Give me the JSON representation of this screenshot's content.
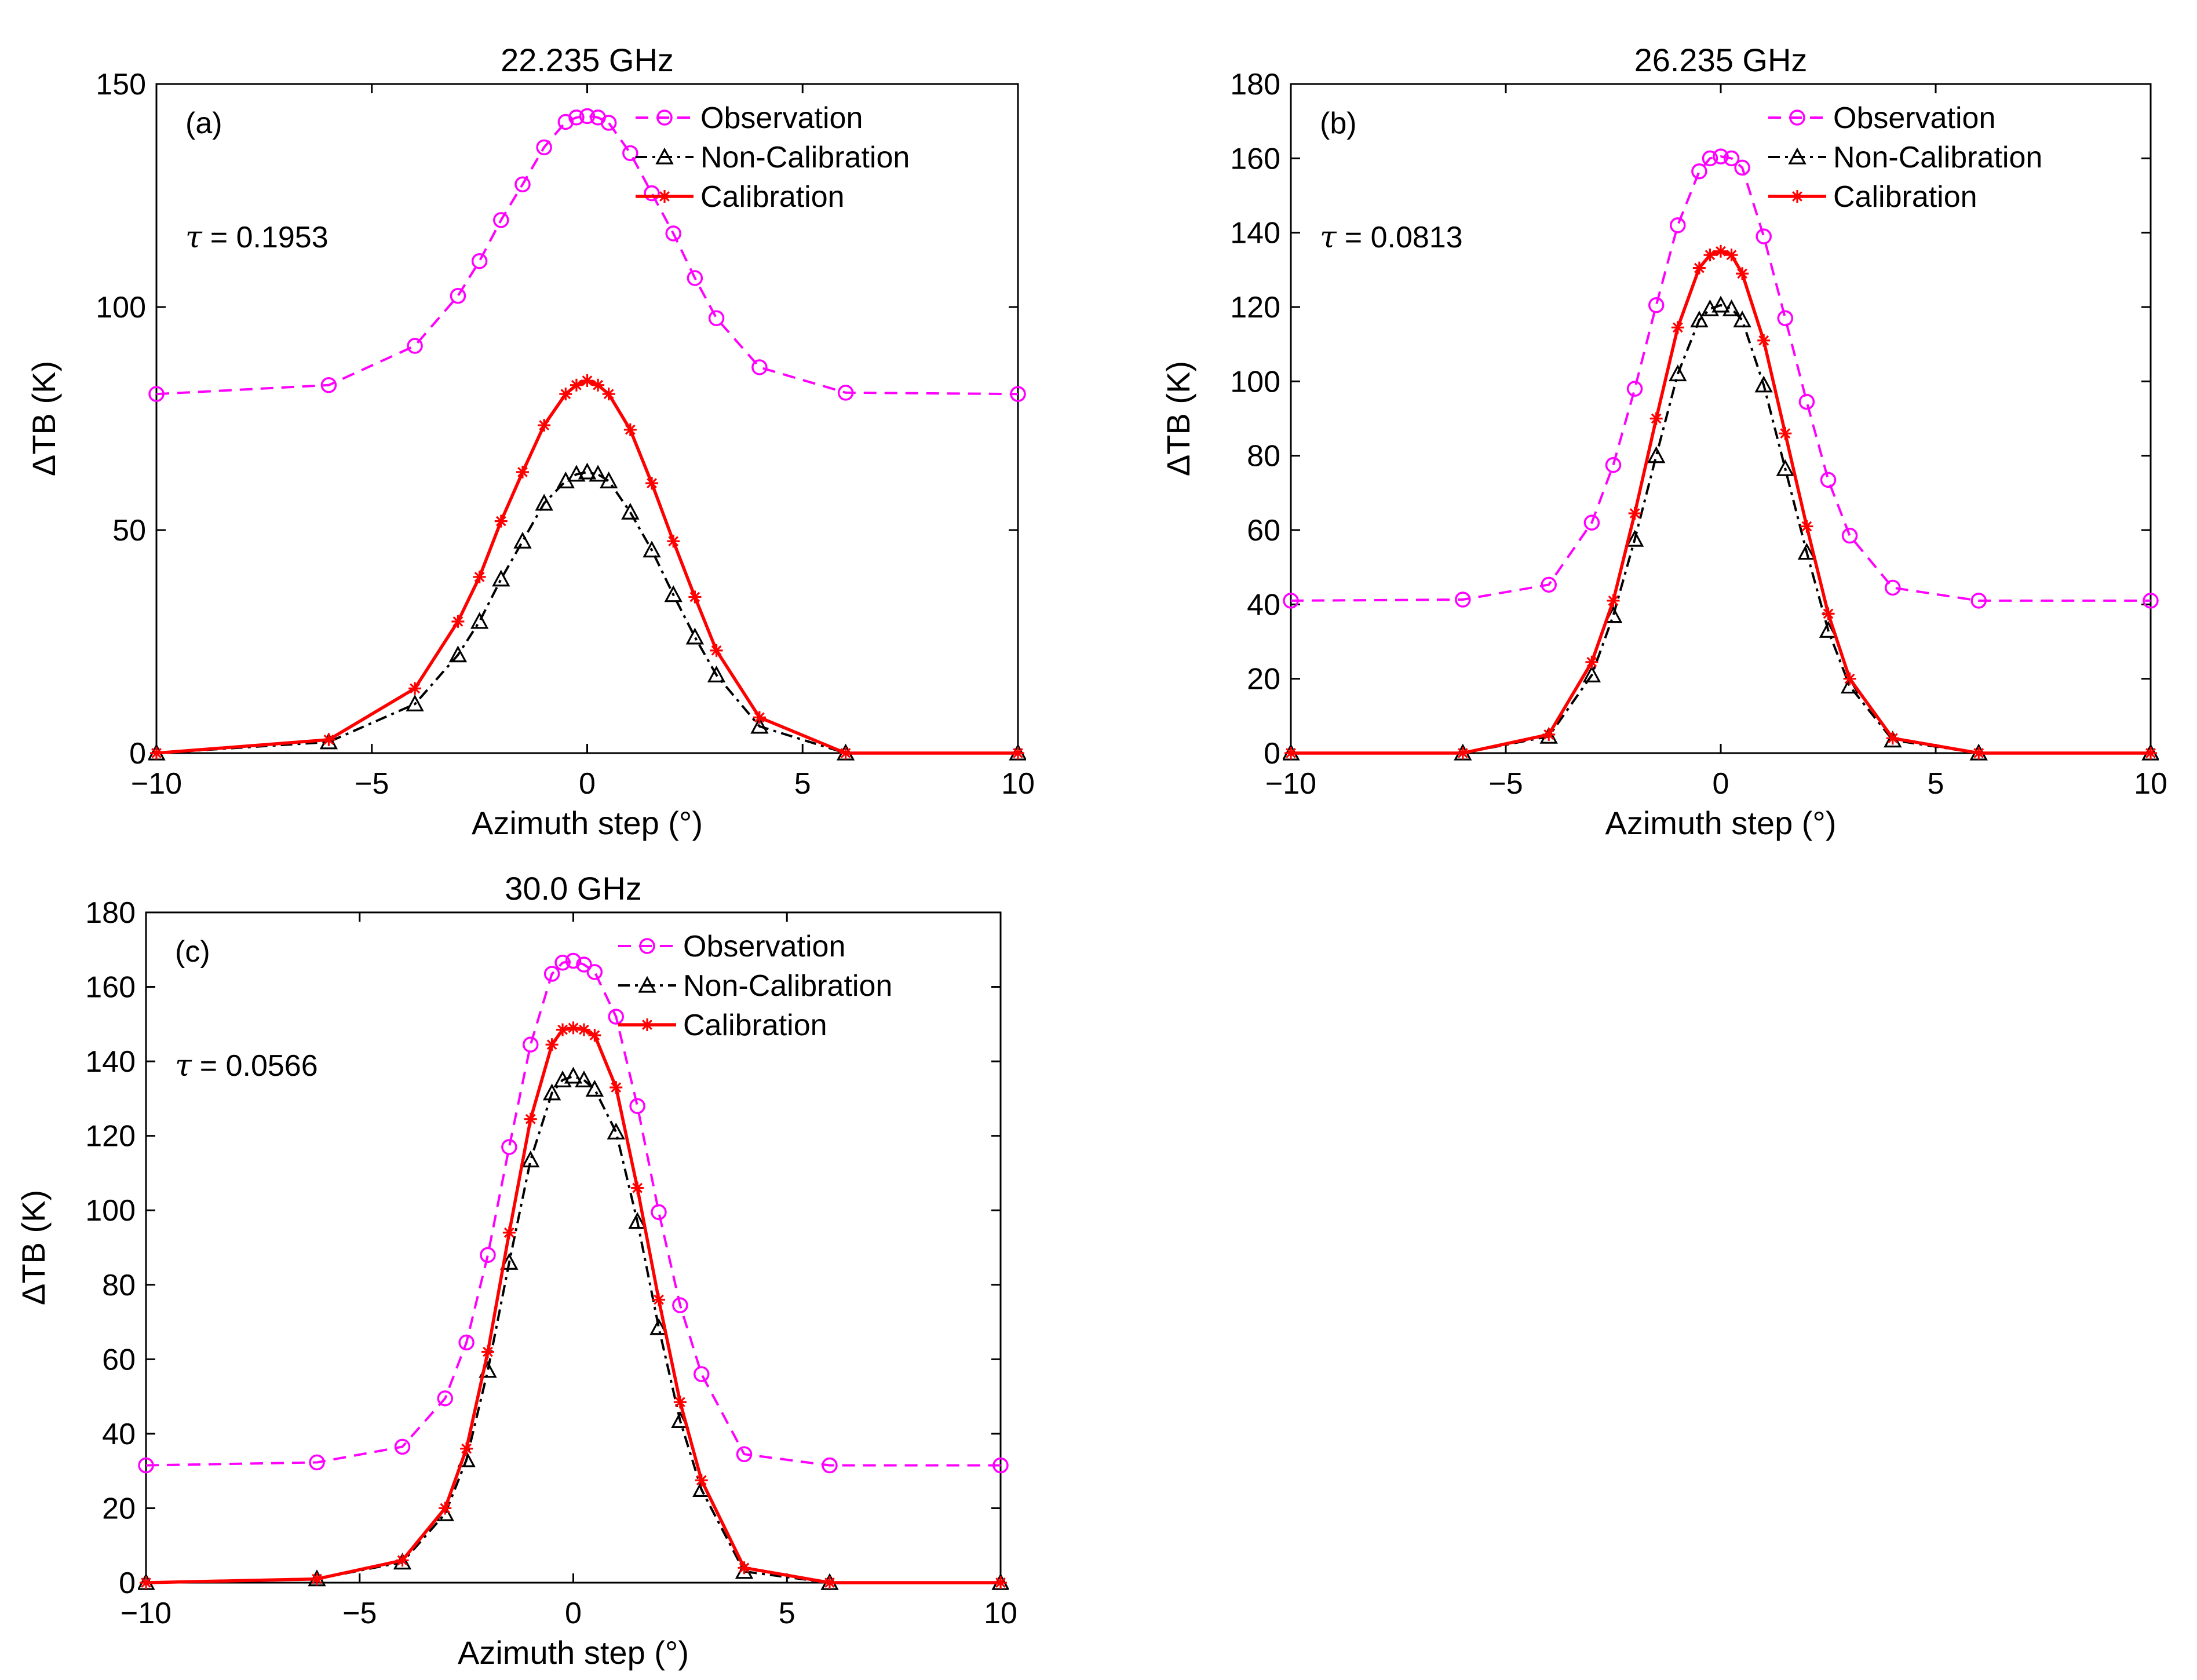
{
  "figure_colors": {
    "observation": "#ff00ff",
    "non_calibration": "#000000",
    "calibration": "#ff0000",
    "axes": "#000000",
    "background": "#ffffff"
  },
  "chart_data": [
    {
      "type": "line",
      "panel_label": "(a)",
      "title": "22.235 GHz",
      "xlabel": "Azimuth step (°)",
      "ylabel": "ΔTB (K)",
      "annotation": "τ = 0.1953",
      "tau_symbol": "τ",
      "tau_text": "= 0.1953",
      "xlim": [
        -10,
        10
      ],
      "ylim": [
        0,
        150
      ],
      "xticks": [
        -10,
        -5,
        0,
        5,
        10
      ],
      "yticks": [
        0,
        50,
        100,
        150
      ],
      "grid": false,
      "legend_position": "top-right",
      "x": [
        -10,
        -6,
        -4,
        -3,
        -2.5,
        -2,
        -1.5,
        -1,
        -0.5,
        -0.25,
        0,
        0.25,
        0.5,
        1,
        1.5,
        2,
        2.5,
        3,
        4,
        6,
        10
      ],
      "series": [
        {
          "name": "Observation",
          "style": "dashed",
          "marker": "circle",
          "values": [
            80.5,
            82.5,
            91.3,
            102.5,
            110.3,
            119.5,
            127.5,
            135.8,
            141.5,
            142.5,
            142.8,
            142.5,
            141.3,
            134.5,
            125.5,
            116.5,
            106.5,
            97.5,
            86.5,
            80.8,
            80.5
          ]
        },
        {
          "name": "Non-Calibration",
          "style": "dashdot",
          "marker": "triangle",
          "values": [
            0,
            2.5,
            11,
            22,
            29.5,
            39,
            47.5,
            56,
            61,
            62.5,
            63,
            62.5,
            61,
            54,
            45.5,
            35.5,
            26,
            17.5,
            6,
            0,
            0
          ]
        },
        {
          "name": "Calibration",
          "style": "solid",
          "marker": "star",
          "values": [
            0,
            3,
            14.5,
            29.5,
            39.5,
            52,
            63,
            73.5,
            80.5,
            82.5,
            83.5,
            82.5,
            80.5,
            72.5,
            60.5,
            47.5,
            35,
            23,
            8,
            0,
            0
          ]
        }
      ]
    },
    {
      "type": "line",
      "panel_label": "(b)",
      "title": "26.235 GHz",
      "xlabel": "Azimuth step (°)",
      "ylabel": "ΔTB (K)",
      "annotation": "τ = 0.0813",
      "tau_symbol": "τ",
      "tau_text": "= 0.0813",
      "xlim": [
        -10,
        10
      ],
      "ylim": [
        0,
        180
      ],
      "xticks": [
        -10,
        -5,
        0,
        5,
        10
      ],
      "yticks": [
        0,
        20,
        40,
        60,
        80,
        100,
        120,
        140,
        160,
        180
      ],
      "grid": false,
      "legend_position": "top-right",
      "x": [
        -10,
        -6,
        -4,
        -3,
        -2.5,
        -2,
        -1.5,
        -1,
        -0.5,
        -0.25,
        0,
        0.25,
        0.5,
        1,
        1.5,
        2,
        2.5,
        3,
        4,
        6,
        10
      ],
      "series": [
        {
          "name": "Observation",
          "style": "dashed",
          "marker": "circle",
          "values": [
            41,
            41.3,
            45.3,
            62,
            77.5,
            98,
            120.5,
            142,
            156.5,
            160,
            160.5,
            160,
            157.5,
            139,
            117,
            94.5,
            73.5,
            58.5,
            44.5,
            41,
            41
          ]
        },
        {
          "name": "Non-Calibration",
          "style": "dashdot",
          "marker": "triangle",
          "values": [
            0,
            0,
            4.5,
            21,
            37,
            57.5,
            80,
            102,
            116.5,
            119.5,
            120.5,
            119.5,
            116.5,
            99,
            76.5,
            54,
            33,
            18,
            3.5,
            0,
            0
          ]
        },
        {
          "name": "Calibration",
          "style": "solid",
          "marker": "star",
          "values": [
            0,
            0,
            5,
            24.5,
            41,
            64.5,
            90,
            114.5,
            130.5,
            134,
            135,
            134,
            129,
            111,
            86,
            61,
            37.5,
            20,
            4,
            0,
            0
          ]
        }
      ]
    },
    {
      "type": "line",
      "panel_label": "(c)",
      "title": "30.0 GHz",
      "xlabel": "Azimuth step (°)",
      "ylabel": "ΔTB (K)",
      "annotation": "τ = 0.0566",
      "tau_symbol": "τ",
      "tau_text": "= 0.0566",
      "xlim": [
        -10,
        10
      ],
      "ylim": [
        0,
        180
      ],
      "xticks": [
        -10,
        -5,
        0,
        5,
        10
      ],
      "yticks": [
        0,
        20,
        40,
        60,
        80,
        100,
        120,
        140,
        160,
        180
      ],
      "grid": false,
      "legend_position": "top-right",
      "x": [
        -10,
        -6,
        -4,
        -3,
        -2.5,
        -2,
        -1.5,
        -1,
        -0.5,
        -0.25,
        0,
        0.25,
        0.5,
        1,
        1.5,
        2,
        2.5,
        3,
        4,
        6,
        10
      ],
      "series": [
        {
          "name": "Observation",
          "style": "dashed",
          "marker": "circle",
          "values": [
            31.5,
            32.3,
            36.5,
            49.5,
            64.5,
            88,
            117,
            144.5,
            163.5,
            166.5,
            167,
            166,
            164,
            152,
            128,
            99.5,
            74.5,
            56,
            34.5,
            31.5,
            31.5
          ]
        },
        {
          "name": "Non-Calibration",
          "style": "dashdot",
          "marker": "triangle",
          "values": [
            0,
            1,
            5.5,
            18.5,
            33,
            57,
            86,
            113.5,
            131.5,
            135,
            136,
            135,
            132.5,
            121,
            97,
            68.5,
            43.5,
            25,
            3,
            0,
            0
          ]
        },
        {
          "name": "Calibration",
          "style": "solid",
          "marker": "star",
          "values": [
            0,
            1,
            6,
            20,
            36,
            62,
            94,
            124.5,
            144.5,
            148.5,
            149,
            148.5,
            147,
            133,
            106,
            76,
            48.5,
            27.5,
            4,
            0,
            0
          ]
        }
      ]
    }
  ]
}
